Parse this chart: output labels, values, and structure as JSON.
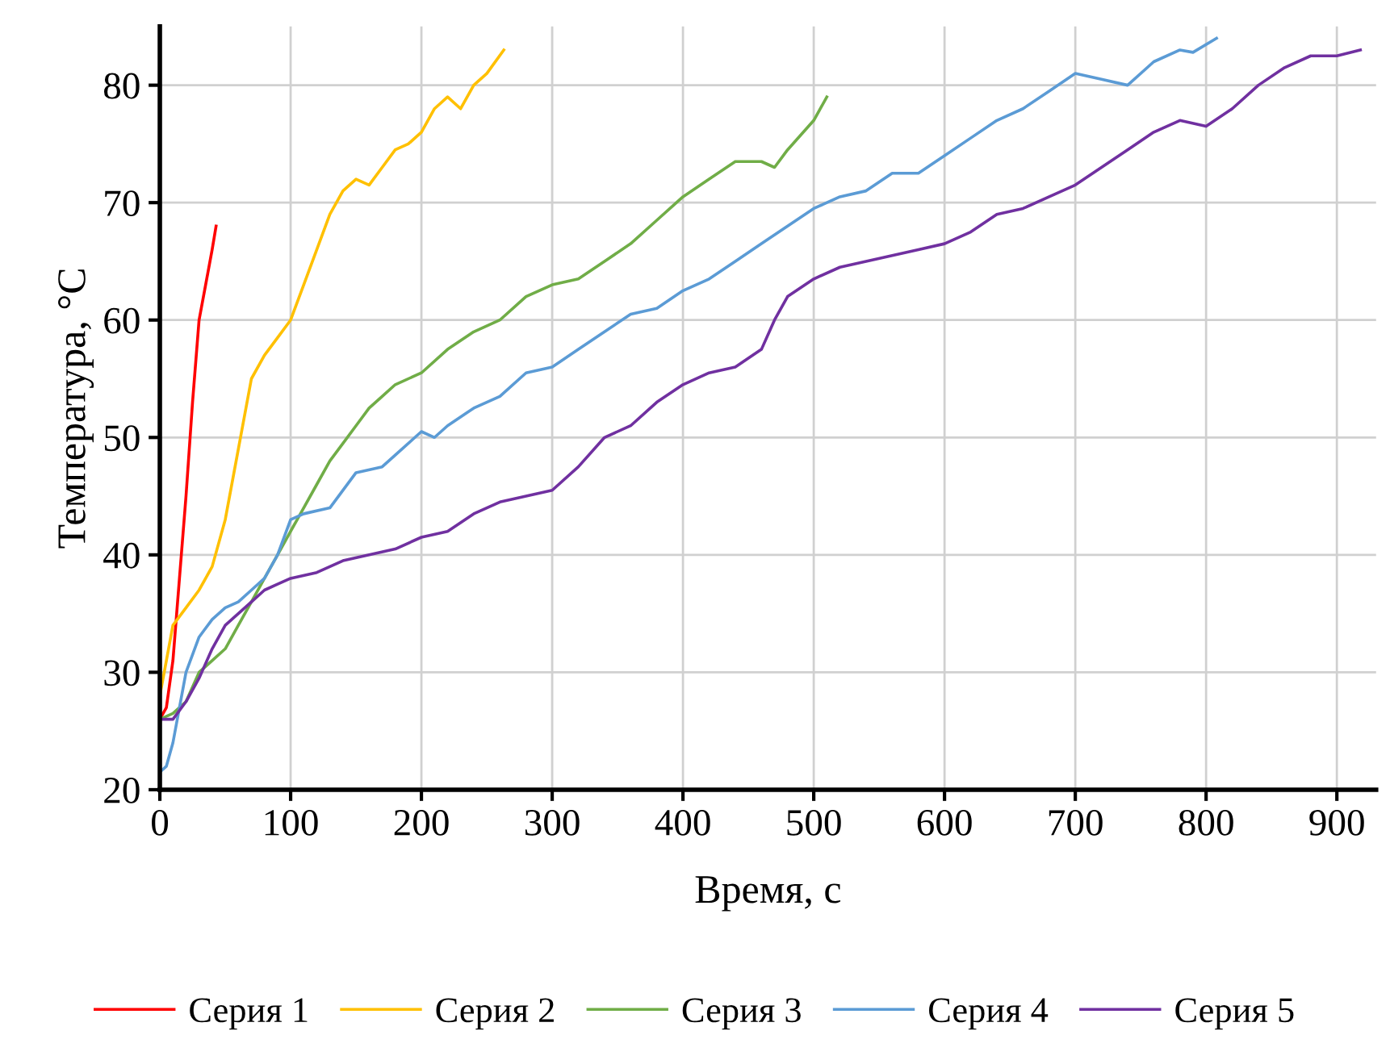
{
  "chart_data": {
    "type": "line",
    "xlabel": "Время, с",
    "ylabel": "Температура, °C",
    "xlim": [
      0,
      930
    ],
    "xticks": [
      0,
      100,
      200,
      300,
      400,
      500,
      600,
      700,
      800,
      900
    ],
    "ylim": [
      20,
      85
    ],
    "yticks": [
      20,
      30,
      40,
      50,
      60,
      70,
      80
    ],
    "grid": true,
    "legend": "bottom",
    "marker": "none",
    "line_style": "solid",
    "series": [
      {
        "name": "Серия 1",
        "color": "#ff0000",
        "x": [
          0,
          5,
          10,
          15,
          20,
          25,
          30,
          35,
          40,
          43
        ],
        "values": [
          26,
          27,
          31,
          38,
          45,
          53,
          60,
          63,
          66,
          68
        ]
      },
      {
        "name": "Серия 2",
        "color": "#ffc000",
        "x": [
          0,
          5,
          10,
          20,
          30,
          40,
          50,
          60,
          70,
          80,
          90,
          100,
          110,
          120,
          130,
          140,
          150,
          160,
          170,
          180,
          190,
          200,
          210,
          220,
          230,
          240,
          250,
          263
        ],
        "values": [
          28,
          31,
          34,
          35.5,
          37,
          39,
          43,
          49,
          55,
          57,
          58.5,
          60,
          63,
          66,
          69,
          71,
          72,
          71.5,
          73,
          74.5,
          75,
          76,
          78,
          79,
          78,
          80,
          81,
          83
        ]
      },
      {
        "name": "Серия 3",
        "color": "#70ad47",
        "x": [
          0,
          10,
          20,
          30,
          40,
          50,
          60,
          70,
          80,
          90,
          100,
          110,
          120,
          130,
          140,
          150,
          160,
          170,
          180,
          200,
          220,
          240,
          260,
          280,
          300,
          320,
          340,
          360,
          380,
          400,
          420,
          440,
          460,
          470,
          480,
          500,
          510
        ],
        "values": [
          26,
          26.5,
          27.5,
          30,
          31,
          32,
          34,
          36,
          38,
          40,
          42,
          44,
          46,
          48,
          49.5,
          51,
          52.5,
          53.5,
          54.5,
          55.5,
          57.5,
          59,
          60,
          62,
          63,
          63.5,
          65,
          66.5,
          68.5,
          70.5,
          72,
          73.5,
          73.5,
          73,
          74.5,
          77,
          79
        ]
      },
      {
        "name": "Серия 4",
        "color": "#5b9bd5",
        "x": [
          0,
          5,
          10,
          20,
          30,
          40,
          50,
          60,
          70,
          80,
          90,
          100,
          110,
          130,
          150,
          170,
          180,
          200,
          210,
          220,
          240,
          260,
          280,
          300,
          320,
          340,
          360,
          380,
          400,
          420,
          440,
          460,
          480,
          500,
          520,
          540,
          560,
          580,
          600,
          620,
          640,
          660,
          680,
          700,
          720,
          740,
          760,
          780,
          790,
          808
        ],
        "values": [
          21.5,
          22,
          24,
          30,
          33,
          34.5,
          35.5,
          36,
          37,
          38,
          40,
          43,
          43.5,
          44,
          47,
          47.5,
          48.5,
          50.5,
          50,
          51,
          52.5,
          53.5,
          55.5,
          56,
          57.5,
          59,
          60.5,
          61,
          62.5,
          63.5,
          65,
          66.5,
          68,
          69.5,
          70.5,
          71,
          72.5,
          72.5,
          74,
          75.5,
          77,
          78,
          79.5,
          81,
          80.5,
          80,
          82,
          83,
          82.8,
          84
        ]
      },
      {
        "name": "Серия 5",
        "color": "#7030a0",
        "x": [
          0,
          10,
          20,
          30,
          40,
          50,
          60,
          70,
          80,
          90,
          100,
          120,
          140,
          160,
          180,
          200,
          220,
          240,
          260,
          280,
          300,
          320,
          340,
          360,
          380,
          400,
          420,
          440,
          460,
          470,
          480,
          500,
          520,
          540,
          560,
          580,
          600,
          620,
          640,
          660,
          680,
          700,
          720,
          740,
          760,
          780,
          800,
          820,
          840,
          860,
          880,
          900,
          918
        ],
        "values": [
          26,
          26,
          27.5,
          29.5,
          32,
          34,
          35,
          36,
          37,
          37.5,
          38,
          38.5,
          39.5,
          40,
          40.5,
          41.5,
          42,
          43.5,
          44.5,
          45,
          45.5,
          47.5,
          50,
          51,
          53,
          54.5,
          55.5,
          56,
          57.5,
          60,
          62,
          63.5,
          64.5,
          65,
          65.5,
          66,
          66.5,
          67.5,
          69,
          69.5,
          70.5,
          71.5,
          73,
          74.5,
          76,
          77,
          76.5,
          78,
          80,
          81.5,
          82.5,
          82.5,
          83
        ]
      }
    ]
  }
}
